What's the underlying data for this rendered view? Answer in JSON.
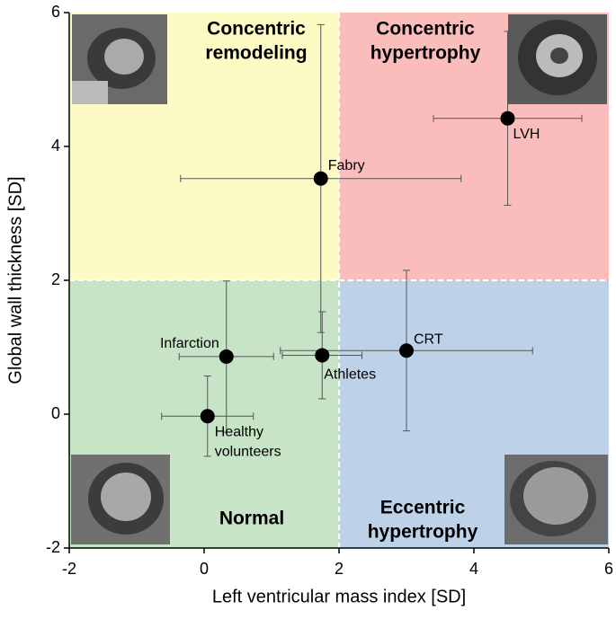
{
  "chart_data": {
    "type": "scatter",
    "x_label": "Left ventricular mass index [SD]",
    "y_label": "Global wall thickness [SD]",
    "xlim": [
      -2,
      6
    ],
    "xticks": [
      -2,
      0,
      2,
      4,
      6
    ],
    "ylim": [
      -2,
      6
    ],
    "yticks": [
      -2,
      0,
      2,
      4,
      6
    ],
    "thresholds": {
      "x": 2,
      "y": 2
    },
    "quadrants": [
      {
        "lines": [
          "Concentric",
          "remodeling"
        ],
        "color": "#fdfbc3"
      },
      {
        "lines": [
          "Concentric",
          "hypertrophy"
        ],
        "color": "#fbbcbc"
      },
      {
        "lines": [
          "Normal"
        ],
        "color": "#c7e4c7"
      },
      {
        "lines": [
          "Eccentric",
          "hypertrophy"
        ],
        "color": "#bdd2e9"
      }
    ],
    "points": {
      "labels": [
        [
          "Healthy",
          "volunteers"
        ],
        [
          "Infarction"
        ],
        [
          "Athletes"
        ],
        [
          "Fabry"
        ],
        [
          "CRT"
        ],
        [
          "LVH"
        ]
      ],
      "x": [
        0.05,
        0.33,
        1.75,
        1.73,
        3.0,
        4.5
      ],
      "y": [
        -0.03,
        0.86,
        0.88,
        3.52,
        0.95,
        4.42
      ],
      "xerr": [
        0.68,
        0.7,
        0.59,
        2.08,
        1.87,
        1.1
      ],
      "yerr": [
        0.6,
        1.13,
        0.65,
        2.3,
        1.2,
        1.3
      ],
      "color": "#000000"
    }
  }
}
